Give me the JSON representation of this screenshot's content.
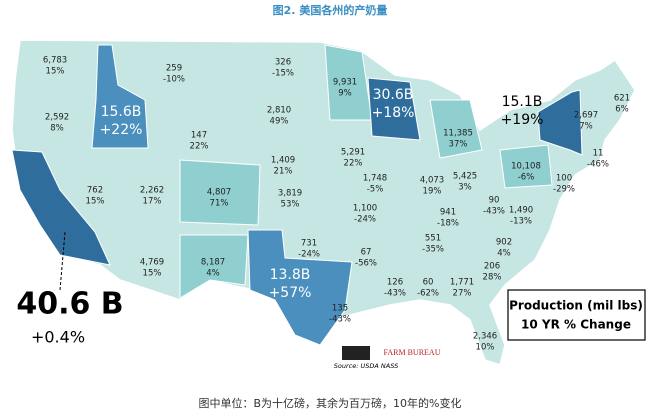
{
  "header": {
    "title": "图2. 美国各州的产奶量"
  },
  "states": [
    {
      "value": "6,783",
      "change": "15%"
    },
    {
      "value": "2,592",
      "change": "8%"
    },
    {
      "value": "15.6B",
      "change": "+22%"
    },
    {
      "value": "259",
      "change": "-10%"
    },
    {
      "value": "326",
      "change": "-15%"
    },
    {
      "value": "9,931",
      "change": "9%"
    },
    {
      "value": "30.6B",
      "change": "+18%"
    },
    {
      "value": "11,385",
      "change": "37%"
    },
    {
      "value": "15.1B",
      "change": "+19%"
    },
    {
      "value": "2,697",
      "change": "7%"
    },
    {
      "value": "621",
      "change": "6%"
    },
    {
      "value": "11",
      "change": "-46%"
    },
    {
      "value": "2,810",
      "change": "49%"
    },
    {
      "value": "147",
      "change": "22%"
    },
    {
      "value": "1,409",
      "change": "21%"
    },
    {
      "value": "5,291",
      "change": "22%"
    },
    {
      "value": "1,748",
      "change": "-5%"
    },
    {
      "value": "4,073",
      "change": "19%"
    },
    {
      "value": "5,425",
      "change": "3%"
    },
    {
      "value": "10,108",
      "change": "-6%"
    },
    {
      "value": "100",
      "change": "-29%"
    },
    {
      "value": "762",
      "change": "15%"
    },
    {
      "value": "2,262",
      "change": "17%"
    },
    {
      "value": "4,807",
      "change": "71%"
    },
    {
      "value": "3,819",
      "change": "53%"
    },
    {
      "value": "1,100",
      "change": "-24%"
    },
    {
      "value": "941",
      "change": "-18%"
    },
    {
      "value": "90",
      "change": "-43%"
    },
    {
      "value": "1,490",
      "change": "-13%"
    },
    {
      "value": "40.6 B",
      "change": "+0.4%"
    },
    {
      "value": "4,769",
      "change": "15%"
    },
    {
      "value": "8,187",
      "change": "4%"
    },
    {
      "value": "13.8B",
      "change": "+57%"
    },
    {
      "value": "731",
      "change": "-24%"
    },
    {
      "value": "67",
      "change": "-56%"
    },
    {
      "value": "551",
      "change": "-35%"
    },
    {
      "value": "902",
      "change": "4%"
    },
    {
      "value": "206",
      "change": "28%"
    },
    {
      "value": "126",
      "change": "-43%"
    },
    {
      "value": "60",
      "change": "-62%"
    },
    {
      "value": "1,771",
      "change": "27%"
    },
    {
      "value": "135",
      "change": "-43%"
    },
    {
      "value": "2,346",
      "change": "10%"
    }
  ],
  "legend": {
    "line1": "Production (mil lbs)",
    "line2": "10 YR % Change"
  },
  "logo": {
    "name": "FARM BUREAU",
    "source": "Source: USDA NASS"
  },
  "footer": {
    "note": "图中单位：B为十亿磅，其余为百万磅，10年的%变化"
  }
}
